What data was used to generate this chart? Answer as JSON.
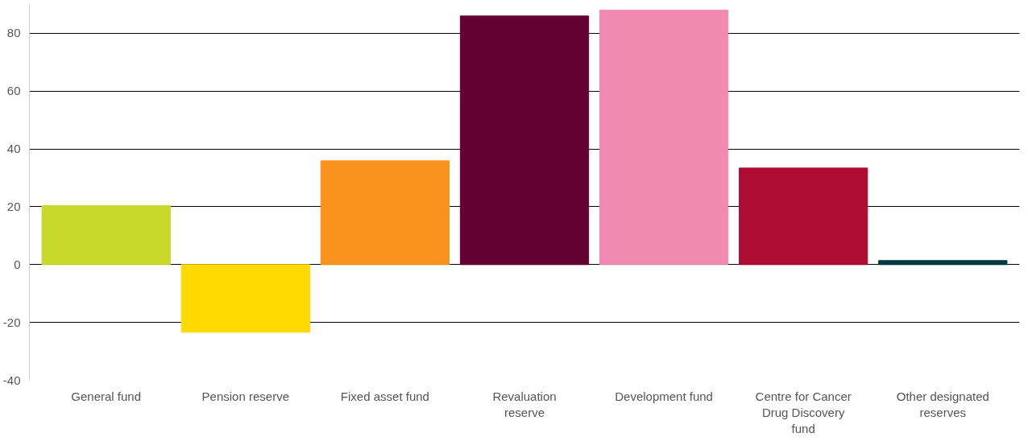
{
  "chart_data": {
    "type": "bar",
    "categories": [
      "General fund",
      "Pension reserve",
      "Fixed asset fund",
      "Revaluation reserve",
      "Development fund",
      "Centre for Cancer Drug Discovery fund",
      "Other designated reserves"
    ],
    "values": [
      20.4,
      -23.4,
      35.9,
      86,
      88,
      33.4,
      1.4
    ],
    "colors": [
      "#c8d92c",
      "#ffd900",
      "#f7931e",
      "#640032",
      "#f18aaf",
      "#ae0c33",
      "#003a40"
    ],
    "ylim": [
      -40,
      90
    ],
    "yticks": [
      -40,
      -20,
      0,
      20,
      40,
      60,
      80
    ],
    "grid": "y"
  }
}
